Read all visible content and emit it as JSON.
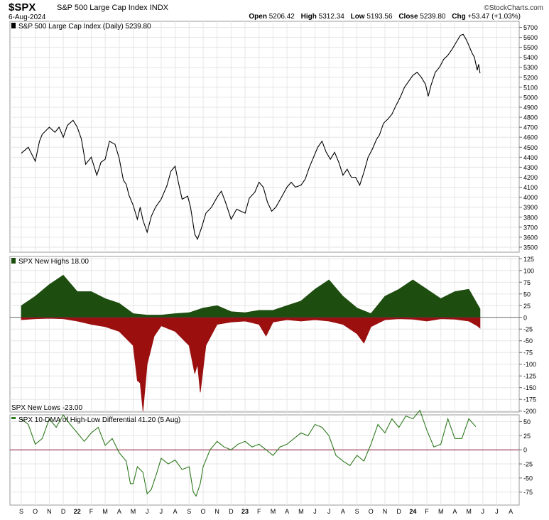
{
  "header": {
    "symbol": "$SPX",
    "name": "S&P 500 Large Cap Index",
    "exchange": "INDX",
    "date": "6-Aug-2024",
    "brand": "©StockCharts.com",
    "open_label": "Open",
    "open": "5206.42",
    "high_label": "High",
    "high": "5312.34",
    "low_label": "Low",
    "low": "5193.56",
    "close_label": "Close",
    "close": "5239.80",
    "chg_label": "Chg",
    "chg": "+53.47 (+1.03%)"
  },
  "chart_data": [
    {
      "type": "line",
      "legend": "S&P 500 Large Cap Index (Daily) 5239.80",
      "x_months": [
        "S",
        "O",
        "N",
        "D",
        "22",
        "F",
        "M",
        "A",
        "M",
        "J",
        "J",
        "A",
        "S",
        "O",
        "N",
        "D",
        "23",
        "F",
        "M",
        "A",
        "M",
        "J",
        "J",
        "A",
        "S",
        "O",
        "N",
        "D",
        "24",
        "F",
        "M",
        "A",
        "M",
        "J",
        "J",
        "A"
      ],
      "y_ticks": [
        3500,
        3600,
        3700,
        3800,
        3900,
        4000,
        4100,
        4200,
        4300,
        4400,
        4500,
        4600,
        4700,
        4800,
        4900,
        5000,
        5100,
        5200,
        5300,
        5400,
        5500,
        5600,
        5700
      ],
      "ylim": [
        3450,
        5760
      ],
      "x_index_range": [
        0,
        35.6
      ],
      "points": [
        [
          0,
          4440
        ],
        [
          0.5,
          4500
        ],
        [
          1,
          4360
        ],
        [
          1.3,
          4560
        ],
        [
          1.5,
          4630
        ],
        [
          2,
          4700
        ],
        [
          2.4,
          4650
        ],
        [
          2.7,
          4700
        ],
        [
          3,
          4600
        ],
        [
          3.3,
          4720
        ],
        [
          3.7,
          4770
        ],
        [
          4,
          4700
        ],
        [
          4.3,
          4580
        ],
        [
          4.6,
          4330
        ],
        [
          5,
          4400
        ],
        [
          5.4,
          4220
        ],
        [
          5.7,
          4350
        ],
        [
          6,
          4380
        ],
        [
          6.3,
          4560
        ],
        [
          6.7,
          4530
        ],
        [
          7,
          4390
        ],
        [
          7.3,
          4170
        ],
        [
          7.5,
          4130
        ],
        [
          7.7,
          4020
        ],
        [
          8,
          3920
        ],
        [
          8.3,
          3780
        ],
        [
          8.5,
          3900
        ],
        [
          8.7,
          3770
        ],
        [
          9,
          3650
        ],
        [
          9.3,
          3810
        ],
        [
          9.6,
          3900
        ],
        [
          10,
          3980
        ],
        [
          10.4,
          4110
        ],
        [
          10.7,
          4260
        ],
        [
          11,
          4310
        ],
        [
          11.2,
          4170
        ],
        [
          11.5,
          3980
        ],
        [
          11.9,
          4010
        ],
        [
          12.1,
          3900
        ],
        [
          12.4,
          3630
        ],
        [
          12.6,
          3580
        ],
        [
          12.9,
          3700
        ],
        [
          13.2,
          3840
        ],
        [
          13.6,
          3900
        ],
        [
          14,
          4000
        ],
        [
          14.3,
          4060
        ],
        [
          14.6,
          3950
        ],
        [
          15,
          3780
        ],
        [
          15.4,
          3880
        ],
        [
          16,
          3840
        ],
        [
          16.3,
          3990
        ],
        [
          16.7,
          4050
        ],
        [
          17,
          4150
        ],
        [
          17.3,
          4100
        ],
        [
          17.6,
          3950
        ],
        [
          17.9,
          3860
        ],
        [
          18.2,
          3900
        ],
        [
          18.6,
          4000
        ],
        [
          19,
          4100
        ],
        [
          19.3,
          4150
        ],
        [
          19.6,
          4100
        ],
        [
          20,
          4120
        ],
        [
          20.3,
          4180
        ],
        [
          20.6,
          4300
        ],
        [
          20.9,
          4400
        ],
        [
          21.2,
          4500
        ],
        [
          21.5,
          4560
        ],
        [
          21.8,
          4450
        ],
        [
          22.1,
          4380
        ],
        [
          22.4,
          4450
        ],
        [
          22.7,
          4350
        ],
        [
          23,
          4220
        ],
        [
          23.3,
          4280
        ],
        [
          23.6,
          4200
        ],
        [
          23.9,
          4200
        ],
        [
          24.2,
          4120
        ],
        [
          24.5,
          4250
        ],
        [
          24.8,
          4400
        ],
        [
          25.1,
          4480
        ],
        [
          25.4,
          4580
        ],
        [
          25.6,
          4620
        ],
        [
          25.9,
          4740
        ],
        [
          26.2,
          4780
        ],
        [
          26.5,
          4830
        ],
        [
          26.8,
          4920
        ],
        [
          27.1,
          5000
        ],
        [
          27.4,
          5100
        ],
        [
          27.7,
          5160
        ],
        [
          28,
          5220
        ],
        [
          28.3,
          5250
        ],
        [
          28.6,
          5200
        ],
        [
          28.9,
          5130
        ],
        [
          29.1,
          5010
        ],
        [
          29.3,
          5120
        ],
        [
          29.6,
          5250
        ],
        [
          29.9,
          5300
        ],
        [
          30.2,
          5380
        ],
        [
          30.5,
          5420
        ],
        [
          30.8,
          5480
        ],
        [
          31.1,
          5550
        ],
        [
          31.4,
          5620
        ],
        [
          31.6,
          5630
        ],
        [
          31.8,
          5580
        ],
        [
          32,
          5520
        ],
        [
          32.2,
          5450
        ],
        [
          32.4,
          5400
        ],
        [
          32.6,
          5270
        ],
        [
          32.7,
          5330
        ],
        [
          32.8,
          5240
        ]
      ]
    },
    {
      "type": "bar",
      "legend_top": "SPX New Highs 18.00",
      "legend_bottom": "SPX New Lows -23.00",
      "y_ticks": [
        -200,
        -175,
        -150,
        -125,
        -100,
        -75,
        -50,
        -25,
        0,
        25,
        50,
        75,
        100,
        125
      ],
      "ylim": [
        -202,
        130
      ],
      "highs_envelope": [
        [
          0,
          25
        ],
        [
          1,
          45
        ],
        [
          2,
          70
        ],
        [
          3,
          90
        ],
        [
          4,
          55
        ],
        [
          5,
          55
        ],
        [
          6,
          40
        ],
        [
          7,
          30
        ],
        [
          8,
          8
        ],
        [
          9,
          5
        ],
        [
          10,
          5
        ],
        [
          11,
          8
        ],
        [
          12,
          10
        ],
        [
          13,
          20
        ],
        [
          14,
          25
        ],
        [
          15,
          12
        ],
        [
          16,
          10
        ],
        [
          17,
          15
        ],
        [
          18,
          15
        ],
        [
          19,
          25
        ],
        [
          20,
          35
        ],
        [
          21,
          60
        ],
        [
          22,
          80
        ],
        [
          23,
          45
        ],
        [
          24,
          20
        ],
        [
          25,
          8
        ],
        [
          26,
          45
        ],
        [
          27,
          60
        ],
        [
          28,
          80
        ],
        [
          29,
          60
        ],
        [
          30,
          40
        ],
        [
          31,
          55
        ],
        [
          32,
          60
        ],
        [
          32.8,
          18
        ]
      ],
      "lows_envelope": [
        [
          0,
          -5
        ],
        [
          1,
          -3
        ],
        [
          2,
          -2
        ],
        [
          3,
          -3
        ],
        [
          4,
          -8
        ],
        [
          5,
          -15
        ],
        [
          6,
          -20
        ],
        [
          7,
          -30
        ],
        [
          8,
          -60
        ],
        [
          8.3,
          -135
        ],
        [
          8.5,
          -140
        ],
        [
          8.7,
          -200
        ],
        [
          9,
          -100
        ],
        [
          9.5,
          -40
        ],
        [
          10,
          -18
        ],
        [
          11,
          -30
        ],
        [
          12,
          -60
        ],
        [
          12.4,
          -120
        ],
        [
          12.6,
          -100
        ],
        [
          12.8,
          -160
        ],
        [
          13.2,
          -60
        ],
        [
          14,
          -15
        ],
        [
          15,
          -10
        ],
        [
          16,
          -8
        ],
        [
          17,
          -15
        ],
        [
          17.5,
          -40
        ],
        [
          18,
          -10
        ],
        [
          19,
          -5
        ],
        [
          20,
          -8
        ],
        [
          21,
          -5
        ],
        [
          22,
          -8
        ],
        [
          23,
          -15
        ],
        [
          24,
          -35
        ],
        [
          24.5,
          -55
        ],
        [
          25,
          -20
        ],
        [
          26,
          -5
        ],
        [
          27,
          -3
        ],
        [
          28,
          -4
        ],
        [
          29,
          -8
        ],
        [
          30,
          -3
        ],
        [
          31,
          -4
        ],
        [
          32,
          -8
        ],
        [
          32.6,
          -18
        ],
        [
          32.8,
          -23
        ]
      ]
    },
    {
      "type": "line",
      "legend": "SPX 10-DMA of High-Low Differential 41.20 (5 Aug)",
      "y_ticks": [
        -75,
        -50,
        -25,
        0,
        25,
        50
      ],
      "ylim": [
        -98,
        62
      ],
      "points": [
        [
          0,
          55
        ],
        [
          0.5,
          45
        ],
        [
          1,
          10
        ],
        [
          1.5,
          20
        ],
        [
          2,
          55
        ],
        [
          2.5,
          40
        ],
        [
          3,
          62
        ],
        [
          3.5,
          45
        ],
        [
          4,
          30
        ],
        [
          4.5,
          15
        ],
        [
          5,
          30
        ],
        [
          5.5,
          40
        ],
        [
          6,
          8
        ],
        [
          6.5,
          20
        ],
        [
          7,
          -5
        ],
        [
          7.5,
          -20
        ],
        [
          7.8,
          -60
        ],
        [
          8,
          -60
        ],
        [
          8.3,
          -30
        ],
        [
          8.7,
          -40
        ],
        [
          9,
          -78
        ],
        [
          9.3,
          -70
        ],
        [
          9.7,
          -40
        ],
        [
          10,
          -15
        ],
        [
          10.5,
          -25
        ],
        [
          11,
          -18
        ],
        [
          11.5,
          -35
        ],
        [
          12,
          -30
        ],
        [
          12.3,
          -75
        ],
        [
          12.5,
          -82
        ],
        [
          12.8,
          -60
        ],
        [
          13,
          -30
        ],
        [
          13.5,
          0
        ],
        [
          14,
          15
        ],
        [
          14.5,
          5
        ],
        [
          15,
          0
        ],
        [
          15.5,
          10
        ],
        [
          16,
          15
        ],
        [
          16.5,
          5
        ],
        [
          17,
          10
        ],
        [
          17.5,
          0
        ],
        [
          18,
          -10
        ],
        [
          18.5,
          5
        ],
        [
          19,
          10
        ],
        [
          19.5,
          20
        ],
        [
          20,
          30
        ],
        [
          20.5,
          25
        ],
        [
          21,
          45
        ],
        [
          21.5,
          40
        ],
        [
          22,
          25
        ],
        [
          22.5,
          -10
        ],
        [
          23,
          -20
        ],
        [
          23.5,
          -28
        ],
        [
          24,
          -10
        ],
        [
          24.5,
          -20
        ],
        [
          25,
          10
        ],
        [
          25.5,
          45
        ],
        [
          26,
          30
        ],
        [
          26.5,
          55
        ],
        [
          27,
          40
        ],
        [
          27.5,
          60
        ],
        [
          28,
          55
        ],
        [
          28.5,
          70
        ],
        [
          29,
          35
        ],
        [
          29.5,
          5
        ],
        [
          30,
          10
        ],
        [
          30.5,
          55
        ],
        [
          31,
          20
        ],
        [
          31.5,
          20
        ],
        [
          32,
          55
        ],
        [
          32.5,
          41
        ]
      ]
    }
  ]
}
